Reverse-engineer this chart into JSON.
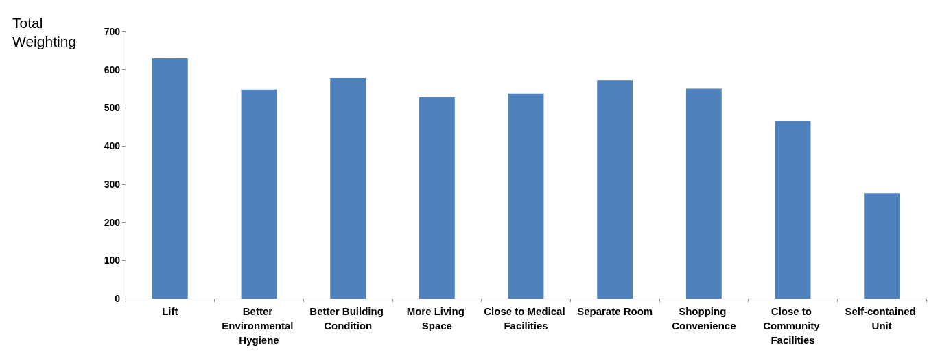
{
  "chart_data": {
    "type": "bar",
    "ylabel": "Total Weighting",
    "categories": [
      "Lift",
      "Better Environmental Hygiene",
      "Better Building Condition",
      "More Living Space",
      "Close to Medical Facilities",
      "Separate Room",
      "Shopping Convenience",
      "Close to Community Facilities",
      "Self-contained Unit"
    ],
    "values": [
      630,
      548,
      578,
      528,
      537,
      572,
      550,
      466,
      276
    ],
    "color": "#4f81bd",
    "ylim": [
      0,
      700
    ],
    "yticks": [
      0,
      100,
      200,
      300,
      400,
      500,
      600,
      700
    ],
    "grid": false
  }
}
